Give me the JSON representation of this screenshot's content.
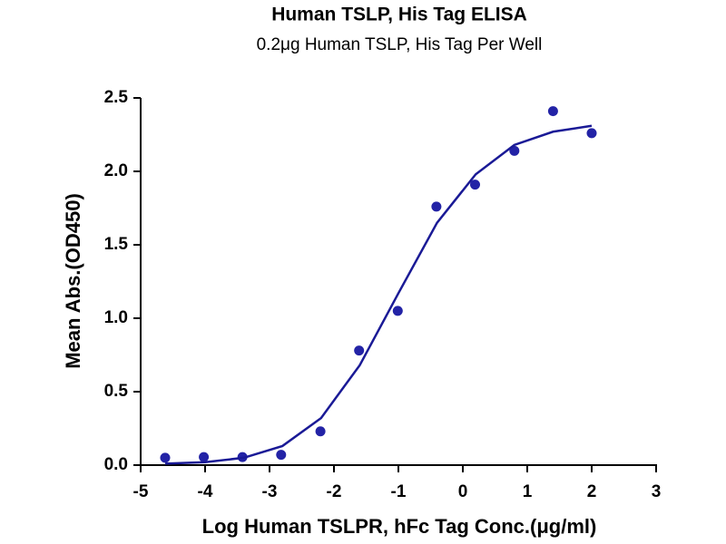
{
  "chart_data": {
    "type": "scatter",
    "title": "Human TSLP, His Tag ELISA",
    "subtitle": "0.2μg Human TSLP, His Tag Per Well",
    "x_label": "Log Human TSLPR, hFc Tag Conc.(μg/ml)",
    "y_label": "Mean Abs.(OD450)",
    "xlim": [
      -5,
      3
    ],
    "xticks": [
      -5,
      -4,
      -3,
      -2,
      -1,
      0,
      1,
      2,
      3
    ],
    "ylim": [
      0,
      2.5
    ],
    "yticks": [
      {
        "value": 0,
        "label": "0.0"
      },
      0.5,
      {
        "value": 1,
        "label": "1.0"
      },
      1.5,
      {
        "value": 2,
        "label": "2.0"
      },
      2.5
    ],
    "series": [
      {
        "type": "scatter",
        "color": "#2323a6",
        "x": [
          -4.62,
          -4.02,
          -3.42,
          -2.82,
          -2.21,
          -1.61,
          -1.01,
          -0.41,
          0.19,
          0.8,
          1.4,
          2.0
        ],
        "values": [
          0.05,
          0.055,
          0.055,
          0.07,
          0.23,
          0.78,
          1.05,
          1.76,
          1.91,
          2.14,
          2.41,
          2.26
        ]
      },
      {
        "type": "line",
        "color": "#1a1a96",
        "x": [
          -4.62,
          -4.0,
          -3.4,
          -2.8,
          -2.2,
          -1.6,
          -1.0,
          -0.4,
          0.2,
          0.8,
          1.4,
          2.0
        ],
        "values": [
          0.01,
          0.02,
          0.05,
          0.13,
          0.32,
          0.68,
          1.17,
          1.65,
          1.98,
          2.18,
          2.27,
          2.31
        ]
      }
    ]
  }
}
